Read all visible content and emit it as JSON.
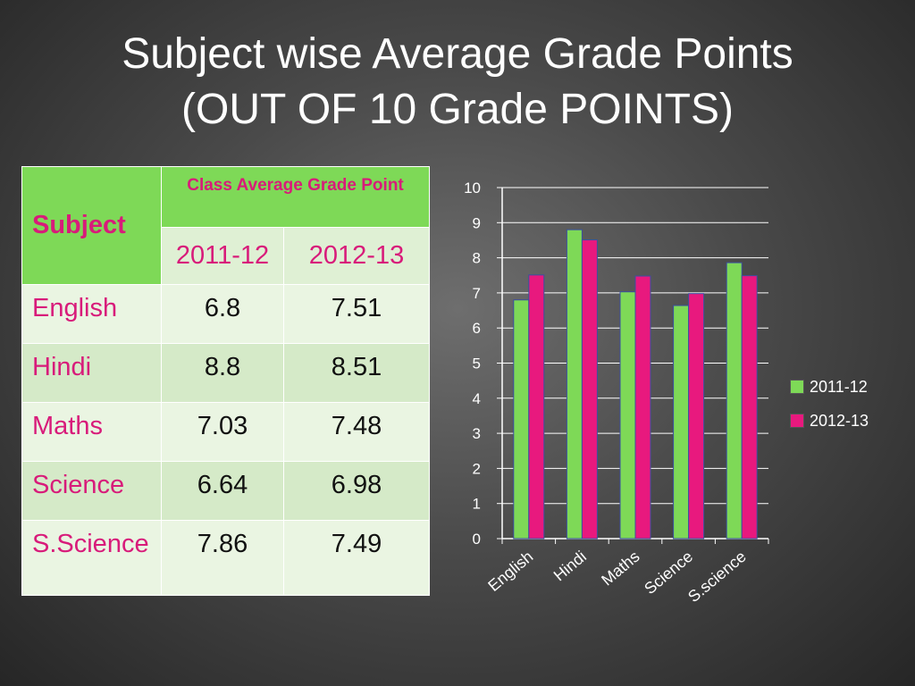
{
  "title": {
    "line1": "Subject wise Average Grade Points",
    "line2": "(OUT OF 10 Grade POINTS)"
  },
  "table": {
    "subject_header": "Subject",
    "group_header": "Class Average Grade Point",
    "years": [
      "2011-12",
      "2012-13"
    ],
    "rows": [
      {
        "subject": "English",
        "v1": "6.8",
        "v2": "7.51"
      },
      {
        "subject": "Hindi",
        "v1": "8.8",
        "v2": "8.51"
      },
      {
        "subject": "Maths",
        "v1": "7.03",
        "v2": "7.48"
      },
      {
        "subject": "Science",
        "v1": "6.64",
        "v2": "6.98"
      },
      {
        "subject": "S.Science",
        "v1": "7.86",
        "v2": "7.49"
      }
    ]
  },
  "chart_data": {
    "type": "bar",
    "categories": [
      "English",
      "Hindi",
      "Maths",
      "Science",
      "S.science"
    ],
    "series": [
      {
        "name": "2011-12",
        "values": [
          6.8,
          8.8,
          7.03,
          6.64,
          7.86
        ],
        "color": "#7ed957"
      },
      {
        "name": "2012-13",
        "values": [
          7.51,
          8.51,
          7.48,
          6.98,
          7.49
        ],
        "color": "#e8197e"
      }
    ],
    "ylim": [
      0,
      10
    ],
    "yticks": [
      0,
      1,
      2,
      3,
      4,
      5,
      6,
      7,
      8,
      9,
      10
    ],
    "grid": true,
    "legend": "right"
  },
  "colors": {
    "header_green": "#7ed957",
    "accent_pink": "#d81b7a"
  }
}
